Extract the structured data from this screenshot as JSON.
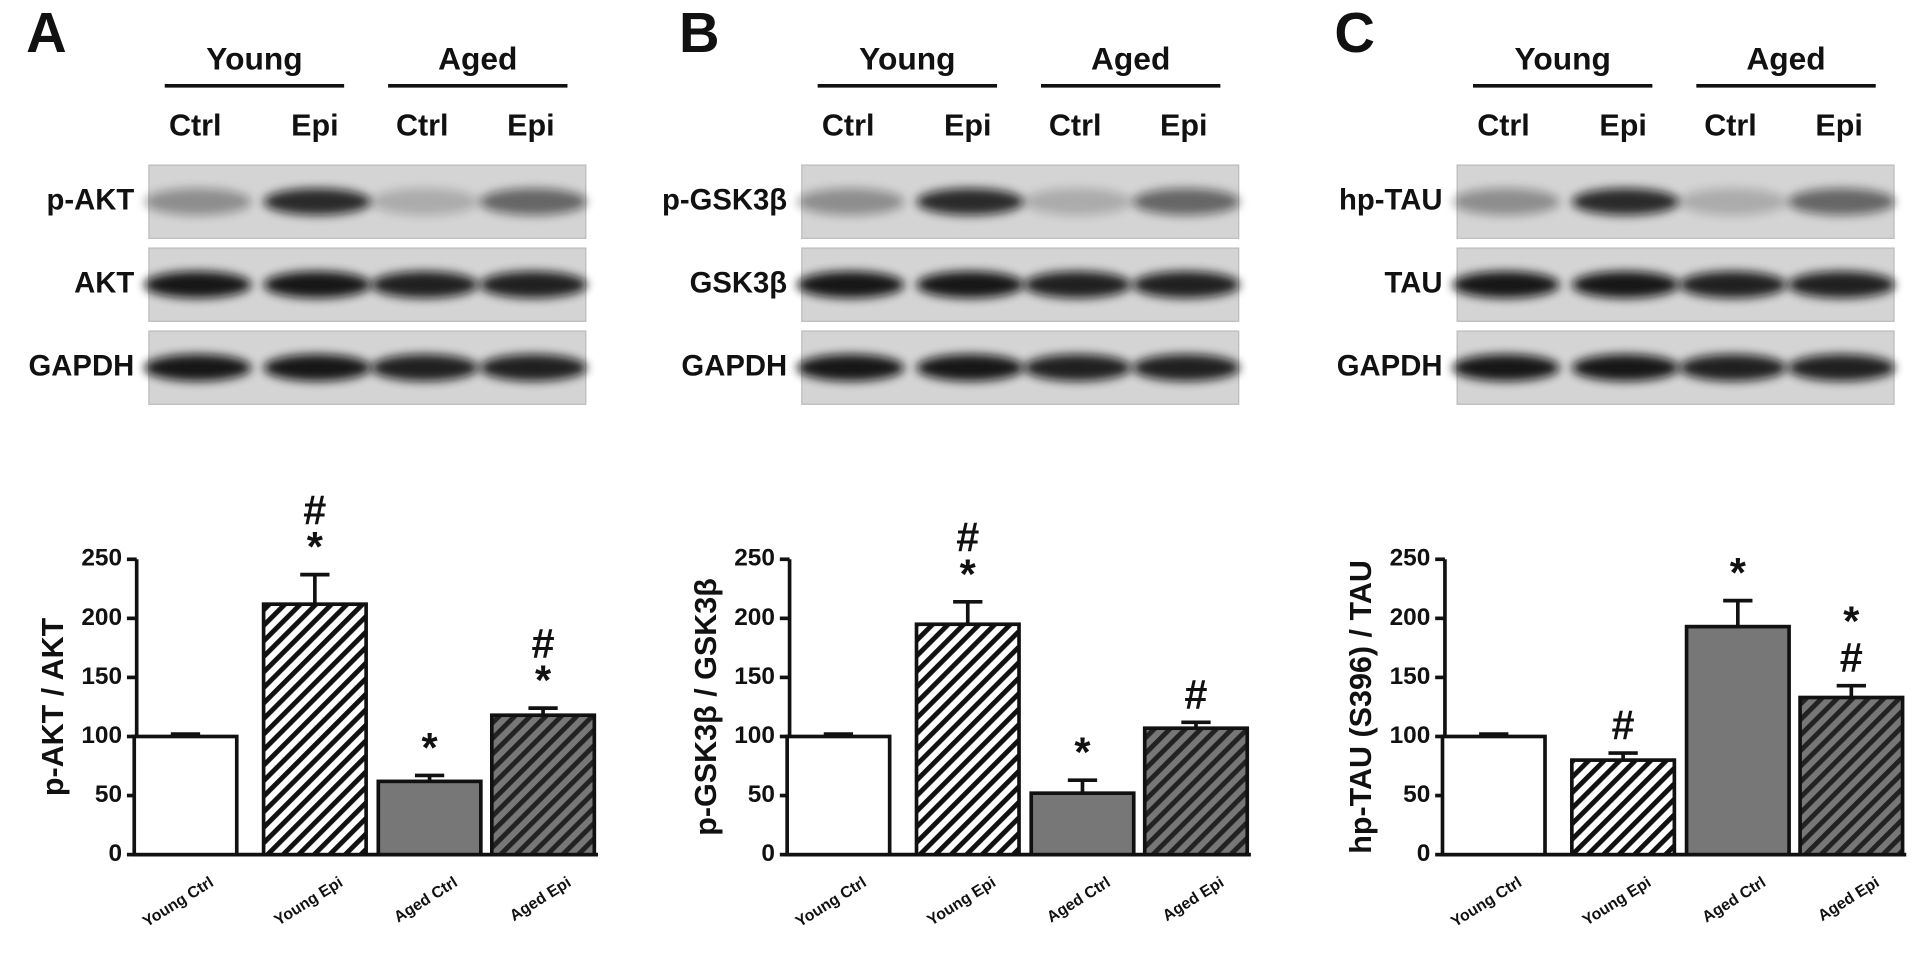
{
  "chart_data": [
    {
      "type": "bar",
      "panel": "A",
      "groups": [
        "Young",
        "Aged"
      ],
      "lanes": [
        "Ctrl",
        "Epi",
        "Ctrl",
        "Epi"
      ],
      "blots": [
        "p-AKT",
        "AKT",
        "GAPDH"
      ],
      "ylabel": "p-AKT / AKT",
      "categories": [
        "Young Ctrl",
        "Young Epi",
        "Aged Ctrl",
        "Aged Epi"
      ],
      "values": [
        100,
        212,
        62,
        118
      ],
      "errors": [
        2,
        25,
        5,
        6
      ],
      "colors": [
        "#ffffff",
        "#ffffff",
        "#777777",
        "#555555"
      ],
      "hatch": [
        false,
        true,
        false,
        true
      ],
      "ylim": [
        0,
        250
      ],
      "yticks": [
        0,
        50,
        100,
        150,
        200,
        250
      ],
      "annotations": [
        {
          "x": "Young Epi",
          "text": [
            "#",
            "*"
          ]
        },
        {
          "x": "Aged Ctrl",
          "text": [
            "*"
          ]
        },
        {
          "x": "Aged Epi",
          "text": [
            "#",
            "*"
          ]
        }
      ]
    },
    {
      "type": "bar",
      "panel": "B",
      "groups": [
        "Young",
        "Aged"
      ],
      "lanes": [
        "Ctrl",
        "Epi",
        "Ctrl",
        "Epi"
      ],
      "blots": [
        "p-GSK3β",
        "GSK3β",
        "GAPDH"
      ],
      "ylabel": "p-GSK3β / GSK3β",
      "categories": [
        "Young Ctrl",
        "Young Epi",
        "Aged Ctrl",
        "Aged Epi"
      ],
      "values": [
        100,
        195,
        52,
        107
      ],
      "errors": [
        2,
        19,
        11,
        5
      ],
      "colors": [
        "#ffffff",
        "#ffffff",
        "#777777",
        "#555555"
      ],
      "hatch": [
        false,
        true,
        false,
        true
      ],
      "ylim": [
        0,
        250
      ],
      "yticks": [
        0,
        50,
        100,
        150,
        200,
        250
      ],
      "annotations": [
        {
          "x": "Young Epi",
          "text": [
            "#",
            "*"
          ]
        },
        {
          "x": "Aged Ctrl",
          "text": [
            "*"
          ]
        },
        {
          "x": "Aged Epi",
          "text": [
            "#"
          ]
        }
      ]
    },
    {
      "type": "bar",
      "panel": "C",
      "groups": [
        "Young",
        "Aged"
      ],
      "lanes": [
        "Ctrl",
        "Epi",
        "Ctrl",
        "Epi"
      ],
      "blots": [
        "hp-TAU",
        "TAU",
        "GAPDH"
      ],
      "ylabel": "hp-TAU (S396) / TAU",
      "categories": [
        "Young Ctrl",
        "Young Epi",
        "Aged Ctrl",
        "Aged Epi"
      ],
      "values": [
        100,
        80,
        193,
        133
      ],
      "errors": [
        2,
        6,
        22,
        10
      ],
      "colors": [
        "#ffffff",
        "#ffffff",
        "#777777",
        "#555555"
      ],
      "hatch": [
        false,
        true,
        false,
        true
      ],
      "ylim": [
        0,
        250
      ],
      "yticks": [
        0,
        50,
        100,
        150,
        200,
        250
      ],
      "annotations": [
        {
          "x": "Young Epi",
          "text": [
            "#"
          ]
        },
        {
          "x": "Aged Ctrl",
          "text": [
            "*"
          ]
        },
        {
          "x": "Aged Epi",
          "text": [
            "*",
            "#"
          ]
        }
      ]
    }
  ]
}
